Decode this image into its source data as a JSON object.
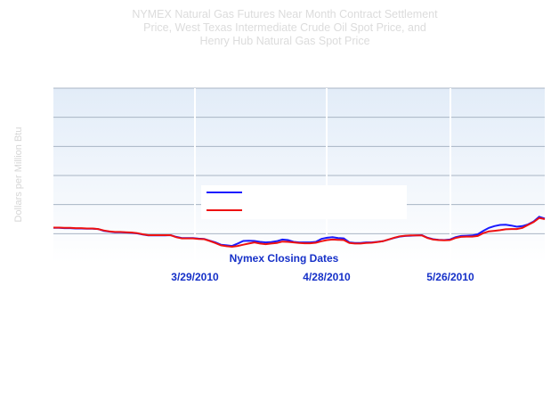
{
  "title": {
    "lines": [
      "NYMEX Natural Gas Futures Near Month Contract Settlement",
      "Price, West Texas Intermediate Crude Oil Spot Price, and",
      "Henry Hub Natural Gas Spot Price"
    ]
  },
  "colors": {
    "series_blue": "#1a1aff",
    "series_red": "#ee1111",
    "xlabel": "#1530c8",
    "gridline": "#a9b4c4",
    "plot_bg_top": "#e2ecf8",
    "plot_bg_bottom": "#ffffff"
  },
  "chart_data": {
    "type": "line",
    "title": "NYMEX Natural Gas Futures Near Month Contract Settlement Price, West Texas Intermediate Crude Oil Spot Price, and Henry Hub Natural Gas Spot Price",
    "xlabel": "Nymex Closing Dates",
    "ylabel": "Dollars per Million Btu",
    "x_ticks": [
      "3/29/2010",
      "4/28/2010",
      "5/26/2010"
    ],
    "ylim": [
      0,
      6
    ],
    "grid": true,
    "legend_position": "center",
    "series": [
      {
        "color": "#1a1aff",
        "values": [
          1.2,
          1.2,
          1.19,
          1.19,
          1.18,
          1.18,
          1.17,
          1.17,
          1.16,
          1.1,
          1.07,
          1.05,
          1.05,
          1.04,
          1.03,
          1.01,
          0.97,
          0.94,
          0.94,
          0.94,
          0.94,
          0.95,
          0.89,
          0.85,
          0.85,
          0.85,
          0.83,
          0.82,
          0.76,
          0.7,
          0.62,
          0.6,
          0.58,
          0.66,
          0.75,
          0.76,
          0.75,
          0.72,
          0.7,
          0.71,
          0.74,
          0.8,
          0.78,
          0.72,
          0.7,
          0.7,
          0.7,
          0.72,
          0.82,
          0.86,
          0.88,
          0.85,
          0.84,
          0.7,
          0.68,
          0.68,
          0.7,
          0.7,
          0.72,
          0.74,
          0.8,
          0.85,
          0.9,
          0.92,
          0.93,
          0.94,
          0.95,
          0.86,
          0.81,
          0.79,
          0.78,
          0.8,
          0.88,
          0.92,
          0.93,
          0.94,
          0.98,
          1.1,
          1.2,
          1.26,
          1.3,
          1.31,
          1.28,
          1.24,
          1.26,
          1.32,
          1.42,
          1.58,
          1.52
        ]
      },
      {
        "color": "#ee1111",
        "values": [
          1.21,
          1.21,
          1.2,
          1.2,
          1.19,
          1.19,
          1.18,
          1.18,
          1.16,
          1.11,
          1.08,
          1.06,
          1.06,
          1.05,
          1.04,
          1.02,
          0.98,
          0.95,
          0.95,
          0.95,
          0.95,
          0.95,
          0.88,
          0.84,
          0.84,
          0.84,
          0.82,
          0.81,
          0.75,
          0.68,
          0.6,
          0.57,
          0.55,
          0.58,
          0.62,
          0.66,
          0.7,
          0.66,
          0.64,
          0.66,
          0.68,
          0.73,
          0.72,
          0.7,
          0.68,
          0.67,
          0.67,
          0.69,
          0.74,
          0.78,
          0.8,
          0.79,
          0.78,
          0.68,
          0.66,
          0.66,
          0.68,
          0.69,
          0.71,
          0.74,
          0.8,
          0.86,
          0.91,
          0.93,
          0.94,
          0.94,
          0.94,
          0.85,
          0.8,
          0.78,
          0.77,
          0.78,
          0.85,
          0.89,
          0.9,
          0.9,
          0.92,
          1.02,
          1.08,
          1.1,
          1.12,
          1.15,
          1.16,
          1.16,
          1.2,
          1.3,
          1.4,
          1.54,
          1.5
        ]
      }
    ]
  }
}
